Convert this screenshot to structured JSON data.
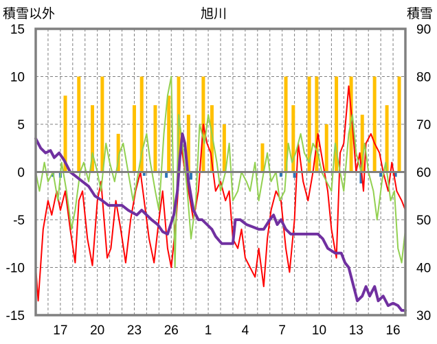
{
  "chart_data": {
    "type": "line",
    "title": "旭川",
    "left_axis": {
      "label": "積雪以外",
      "ylim": [
        -15,
        15
      ],
      "ticks": [
        -15,
        -10,
        -5,
        0,
        5,
        10,
        15
      ]
    },
    "right_axis": {
      "label": "積雪",
      "ylim": [
        30,
        90
      ],
      "ticks": [
        30,
        40,
        50,
        60,
        70,
        80,
        90
      ]
    },
    "x_days": [
      15,
      45
    ],
    "x_tick_labels": [
      {
        "day": 17,
        "label": "17"
      },
      {
        "day": 20,
        "label": "20"
      },
      {
        "day": 23,
        "label": "23"
      },
      {
        "day": 26,
        "label": "26"
      },
      {
        "day": 29,
        "label": "1"
      },
      {
        "day": 32,
        "label": "4"
      },
      {
        "day": 35,
        "label": "7"
      },
      {
        "day": 38,
        "label": "10"
      },
      {
        "day": 41,
        "label": "13"
      },
      {
        "day": 44,
        "label": "16"
      }
    ],
    "grid": true,
    "series": [
      {
        "kind": "bar",
        "color": "#ffc000",
        "axis": "left",
        "points": [
          [
            17.4,
            8
          ],
          [
            18.5,
            10
          ],
          [
            19.6,
            7
          ],
          [
            20.4,
            10
          ],
          [
            21.7,
            4
          ],
          [
            23.0,
            7
          ],
          [
            23.6,
            10
          ],
          [
            24.7,
            7
          ],
          [
            25.8,
            8
          ],
          [
            26.6,
            10
          ],
          [
            27.4,
            6
          ],
          [
            28.6,
            10
          ],
          [
            29.3,
            7
          ],
          [
            30.3,
            5
          ],
          [
            33.4,
            3
          ],
          [
            35.3,
            10
          ],
          [
            35.9,
            7
          ],
          [
            37.2,
            10
          ],
          [
            37.8,
            10
          ],
          [
            38.6,
            5
          ],
          [
            39.4,
            10
          ],
          [
            40.6,
            10
          ],
          [
            41.5,
            6
          ],
          [
            42.5,
            10
          ],
          [
            43.5,
            7
          ],
          [
            44.5,
            10
          ]
        ]
      },
      {
        "kind": "bar",
        "color": "#2e75b6",
        "axis": "left",
        "points": [
          [
            16.4,
            -0.5
          ],
          [
            17.0,
            -0.6
          ],
          [
            23.8,
            -0.4
          ],
          [
            25.6,
            -0.6
          ],
          [
            27.6,
            -0.8
          ],
          [
            34.9,
            -0.5
          ],
          [
            36.0,
            -0.6
          ],
          [
            41.4,
            -1.2
          ],
          [
            43.0,
            -0.5
          ],
          [
            44.2,
            -0.5
          ]
        ]
      },
      {
        "kind": "line",
        "color": "#ff0000",
        "axis": "left",
        "points": [
          [
            15.0,
            -10
          ],
          [
            15.2,
            -13.5
          ],
          [
            15.6,
            -6
          ],
          [
            16.0,
            -3
          ],
          [
            16.3,
            -4.5
          ],
          [
            16.7,
            -2
          ],
          [
            17.0,
            -4
          ],
          [
            17.4,
            -2
          ],
          [
            17.8,
            -6
          ],
          [
            18.2,
            -9.5
          ],
          [
            18.5,
            -3
          ],
          [
            18.8,
            -2
          ],
          [
            19.2,
            -7
          ],
          [
            19.6,
            -9.8
          ],
          [
            20.0,
            -3
          ],
          [
            20.3,
            -1
          ],
          [
            20.8,
            -9
          ],
          [
            21.1,
            -8
          ],
          [
            21.5,
            -3
          ],
          [
            21.9,
            -6
          ],
          [
            22.3,
            -9.5
          ],
          [
            22.7,
            -5
          ],
          [
            23.1,
            -2
          ],
          [
            23.5,
            0
          ],
          [
            23.8,
            -3
          ],
          [
            24.2,
            -7
          ],
          [
            24.6,
            -9.5
          ],
          [
            25.0,
            -5
          ],
          [
            25.3,
            -2
          ],
          [
            25.7,
            -8
          ],
          [
            26.0,
            -10
          ],
          [
            26.4,
            -5
          ],
          [
            26.8,
            3
          ],
          [
            27.0,
            1
          ],
          [
            27.4,
            -2
          ],
          [
            27.8,
            -5
          ],
          [
            28.2,
            -2
          ],
          [
            28.6,
            5
          ],
          [
            28.9,
            3
          ],
          [
            29.2,
            2
          ],
          [
            29.6,
            -2
          ],
          [
            30.0,
            -1
          ],
          [
            30.4,
            -3
          ],
          [
            30.7,
            -2
          ],
          [
            31.0,
            -7
          ],
          [
            31.4,
            -8
          ],
          [
            31.7,
            -6
          ],
          [
            32.0,
            -9
          ],
          [
            32.4,
            -10
          ],
          [
            32.8,
            -11
          ],
          [
            33.1,
            -8
          ],
          [
            33.5,
            -12
          ],
          [
            33.8,
            -7
          ],
          [
            34.1,
            -4
          ],
          [
            34.5,
            -2
          ],
          [
            34.9,
            -3
          ],
          [
            35.3,
            -8
          ],
          [
            35.6,
            -10.5
          ],
          [
            36.0,
            -5
          ],
          [
            36.3,
            3
          ],
          [
            36.7,
            -1
          ],
          [
            37.1,
            -3
          ],
          [
            37.5,
            0
          ],
          [
            37.9,
            4
          ],
          [
            38.3,
            1
          ],
          [
            38.7,
            -2
          ],
          [
            39.0,
            -6
          ],
          [
            39.4,
            -9
          ],
          [
            39.7,
            2
          ],
          [
            40.0,
            3
          ],
          [
            40.4,
            9
          ],
          [
            40.7,
            5
          ],
          [
            41.0,
            0
          ],
          [
            41.3,
            2
          ],
          [
            41.6,
            -2
          ],
          [
            41.8,
            3
          ],
          [
            42.2,
            4
          ],
          [
            42.5,
            3
          ],
          [
            42.9,
            2
          ],
          [
            43.2,
            0
          ],
          [
            43.6,
            -2
          ],
          [
            43.9,
            1
          ],
          [
            44.3,
            -2
          ],
          [
            44.7,
            -3
          ],
          [
            45.0,
            -4
          ]
        ]
      },
      {
        "kind": "line",
        "color": "#92d050",
        "axis": "left",
        "points": [
          [
            15.0,
            0
          ],
          [
            15.3,
            -2
          ],
          [
            15.7,
            1
          ],
          [
            16.0,
            -1
          ],
          [
            16.4,
            0
          ],
          [
            16.8,
            -3
          ],
          [
            17.1,
            1
          ],
          [
            17.5,
            -2
          ],
          [
            17.9,
            -6
          ],
          [
            18.2,
            -4
          ],
          [
            18.6,
            0
          ],
          [
            18.9,
            1
          ],
          [
            19.3,
            -1
          ],
          [
            19.6,
            2
          ],
          [
            20.0,
            0
          ],
          [
            20.3,
            -2
          ],
          [
            20.7,
            3
          ],
          [
            21.0,
            1
          ],
          [
            21.4,
            -1
          ],
          [
            21.8,
            2
          ],
          [
            22.1,
            3
          ],
          [
            22.5,
            0
          ],
          [
            22.9,
            -3
          ],
          [
            23.2,
            -1
          ],
          [
            23.6,
            2
          ],
          [
            24.0,
            4
          ],
          [
            24.3,
            1
          ],
          [
            24.7,
            -2
          ],
          [
            25.0,
            -4
          ],
          [
            25.4,
            4
          ],
          [
            25.7,
            8
          ],
          [
            26.0,
            10
          ],
          [
            26.3,
            -10
          ],
          [
            26.6,
            6
          ],
          [
            26.9,
            3
          ],
          [
            27.3,
            -2
          ],
          [
            27.6,
            -7
          ],
          [
            28.0,
            -3
          ],
          [
            28.3,
            5
          ],
          [
            28.7,
            3
          ],
          [
            29.0,
            6
          ],
          [
            29.3,
            4
          ],
          [
            29.7,
            1
          ],
          [
            30.0,
            -2
          ],
          [
            30.4,
            0
          ],
          [
            30.7,
            3
          ],
          [
            31.0,
            -3
          ],
          [
            31.4,
            -2
          ],
          [
            31.7,
            0
          ],
          [
            32.1,
            -1
          ],
          [
            32.4,
            -2
          ],
          [
            32.8,
            1
          ],
          [
            33.1,
            -3
          ],
          [
            33.5,
            0
          ],
          [
            33.8,
            2
          ],
          [
            34.1,
            -1
          ],
          [
            34.5,
            0
          ],
          [
            34.8,
            -3
          ],
          [
            35.2,
            -2
          ],
          [
            35.5,
            3
          ],
          [
            35.8,
            1
          ],
          [
            36.1,
            2
          ],
          [
            36.5,
            4
          ],
          [
            36.8,
            2
          ],
          [
            37.2,
            1
          ],
          [
            37.5,
            3
          ],
          [
            37.9,
            2
          ],
          [
            38.2,
            0
          ],
          [
            38.6,
            -1
          ],
          [
            39.0,
            -2
          ],
          [
            39.3,
            3
          ],
          [
            39.7,
            0
          ],
          [
            40.0,
            -2
          ],
          [
            40.4,
            4
          ],
          [
            40.7,
            6
          ],
          [
            41.0,
            2
          ],
          [
            41.4,
            0
          ],
          [
            41.7,
            3
          ],
          [
            42.0,
            0
          ],
          [
            42.4,
            -2
          ],
          [
            42.7,
            -5
          ],
          [
            43.1,
            -1
          ],
          [
            43.4,
            1
          ],
          [
            43.8,
            -3
          ],
          [
            44.1,
            -2
          ],
          [
            44.4,
            -8
          ],
          [
            44.7,
            -9.5
          ],
          [
            45.0,
            -6
          ]
        ]
      },
      {
        "kind": "line",
        "color": "#7030a0",
        "axis": "right",
        "points": [
          [
            15.0,
            67
          ],
          [
            15.4,
            65
          ],
          [
            15.8,
            64
          ],
          [
            16.2,
            64.5
          ],
          [
            16.5,
            63
          ],
          [
            16.9,
            64
          ],
          [
            17.3,
            62.5
          ],
          [
            17.8,
            60
          ],
          [
            18.3,
            59
          ],
          [
            18.8,
            58
          ],
          [
            19.3,
            57
          ],
          [
            19.8,
            55
          ],
          [
            20.4,
            54
          ],
          [
            20.9,
            53
          ],
          [
            21.4,
            53
          ],
          [
            22.0,
            53
          ],
          [
            22.5,
            52
          ],
          [
            23.2,
            51
          ],
          [
            23.6,
            52
          ],
          [
            24.0,
            51
          ],
          [
            24.4,
            50
          ],
          [
            24.9,
            49
          ],
          [
            25.3,
            47.5
          ],
          [
            25.7,
            47
          ],
          [
            26.2,
            51
          ],
          [
            26.5,
            56
          ],
          [
            26.7,
            63
          ],
          [
            26.9,
            68
          ],
          [
            27.1,
            66
          ],
          [
            27.4,
            58
          ],
          [
            27.8,
            52
          ],
          [
            28.2,
            50
          ],
          [
            28.5,
            50
          ],
          [
            28.9,
            49
          ],
          [
            29.3,
            48
          ],
          [
            29.6,
            46.5
          ],
          [
            30.1,
            45
          ],
          [
            30.6,
            45
          ],
          [
            31.0,
            45
          ],
          [
            31.2,
            50
          ],
          [
            31.6,
            50
          ],
          [
            32.1,
            49
          ],
          [
            32.6,
            48.5
          ],
          [
            33.1,
            48
          ],
          [
            33.5,
            48
          ],
          [
            34.0,
            50
          ],
          [
            34.3,
            51
          ],
          [
            34.6,
            49
          ],
          [
            34.9,
            50
          ],
          [
            35.3,
            48
          ],
          [
            35.7,
            47
          ],
          [
            36.2,
            47
          ],
          [
            36.7,
            47
          ],
          [
            37.2,
            47
          ],
          [
            37.6,
            47
          ],
          [
            37.9,
            47
          ],
          [
            38.3,
            46
          ],
          [
            38.7,
            44
          ],
          [
            39.3,
            43
          ],
          [
            39.8,
            43
          ],
          [
            40.1,
            41
          ],
          [
            40.4,
            40
          ],
          [
            40.8,
            36
          ],
          [
            41.1,
            33
          ],
          [
            41.5,
            34
          ],
          [
            41.8,
            36
          ],
          [
            42.1,
            34
          ],
          [
            42.5,
            36
          ],
          [
            42.8,
            33
          ],
          [
            43.2,
            34
          ],
          [
            43.6,
            32
          ],
          [
            44.0,
            32.5
          ],
          [
            44.4,
            32
          ],
          [
            44.7,
            31
          ],
          [
            45.0,
            31
          ]
        ]
      }
    ]
  }
}
